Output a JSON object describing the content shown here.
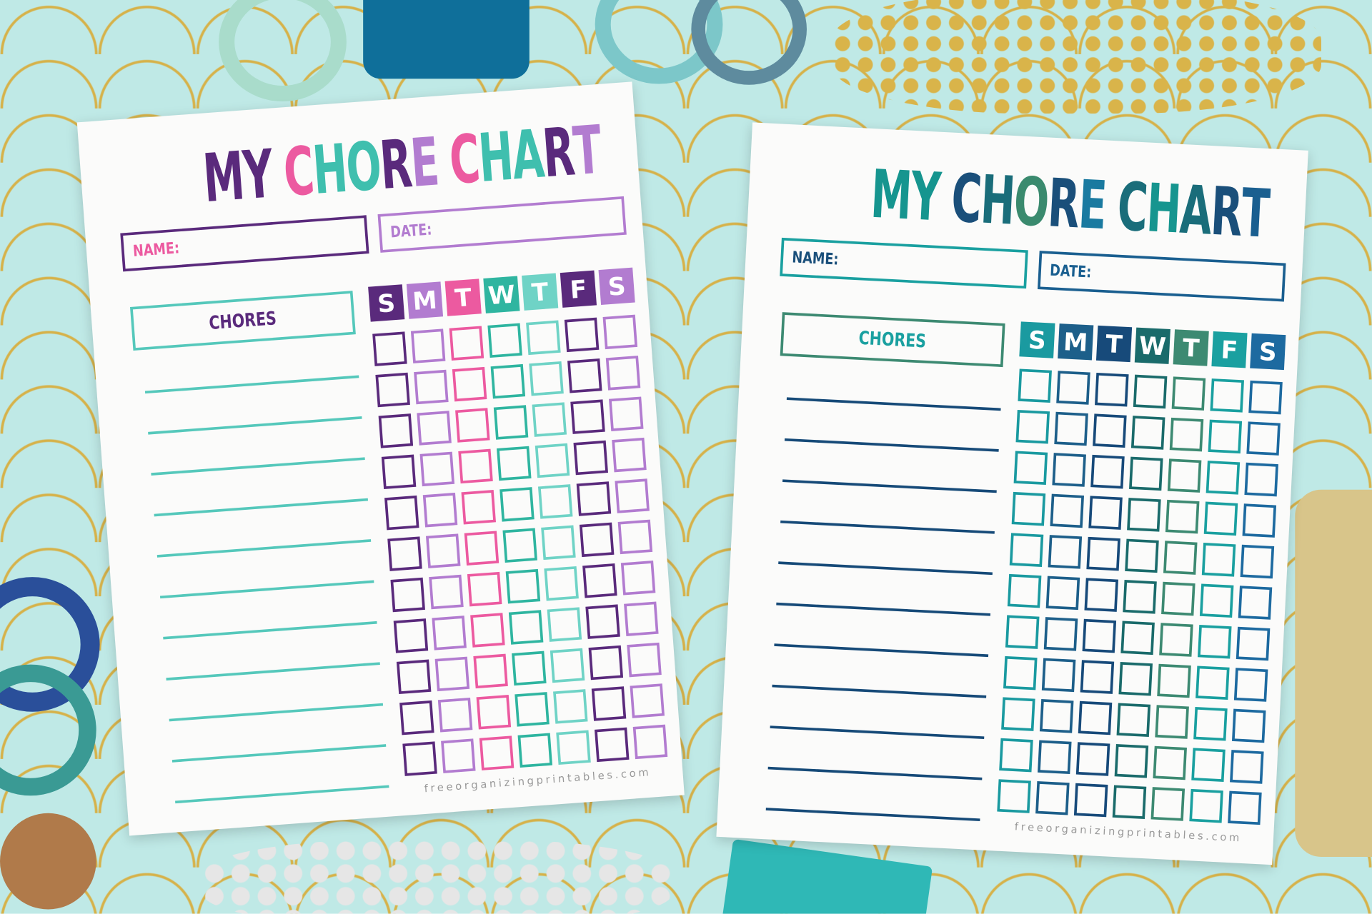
{
  "charts": [
    {
      "title_letters": [
        [
          "M",
          "#5a2a7c"
        ],
        [
          "Y",
          "#5a2a7c"
        ],
        [
          " ",
          ""
        ],
        [
          "C",
          "#ec5aa0"
        ],
        [
          "H",
          "#3fbfae"
        ],
        [
          "O",
          "#3fbfae"
        ],
        [
          "R",
          "#5a2a7c"
        ],
        [
          "E",
          "#b27cd0"
        ],
        [
          " ",
          ""
        ],
        [
          "C",
          "#ec5aa0"
        ],
        [
          "H",
          "#3fbfae"
        ],
        [
          "A",
          "#3fbfae"
        ],
        [
          "R",
          "#5a2a7c"
        ],
        [
          "T",
          "#b27cd0"
        ]
      ],
      "name_label": "NAME:",
      "name_color": "#5a2a7c",
      "name_text_color": "#ec5aa0",
      "date_label": "DATE:",
      "date_color": "#b27cd0",
      "chores_label": "CHORES",
      "chores_border": "#55c8bb",
      "chores_text": "#5a2a7c",
      "line_color": "#55c8bb",
      "days": [
        "S",
        "M",
        "T",
        "W",
        "T",
        "F",
        "S"
      ],
      "day_colors": [
        "#5a2a7c",
        "#b27cd0",
        "#ec5aa0",
        "#2fb5a0",
        "#6fd3c6",
        "#5a2a7c",
        "#b27cd0"
      ],
      "website": "freeorganizingprintables.com"
    },
    {
      "title_letters": [
        [
          "M",
          "#16958f"
        ],
        [
          "Y",
          "#16958f"
        ],
        [
          " ",
          ""
        ],
        [
          "C",
          "#1a4f7a"
        ],
        [
          "H",
          "#1a6d7a"
        ],
        [
          "O",
          "#3a8a6e"
        ],
        [
          "R",
          "#1a4f7a"
        ],
        [
          "E",
          "#1a7aa0"
        ],
        [
          " ",
          ""
        ],
        [
          "C",
          "#1a6d7a"
        ],
        [
          "H",
          "#16958f"
        ],
        [
          "A",
          "#1a6d7a"
        ],
        [
          "R",
          "#1a4f7a"
        ],
        [
          "T",
          "#1a5f90"
        ]
      ],
      "name_label": "NAME:",
      "name_color": "#1aa0a0",
      "name_text_color": "#1a4f7a",
      "date_label": "DATE:",
      "date_color": "#1a5f90",
      "chores_label": "CHORES",
      "chores_border": "#3d8a72",
      "chores_text": "#1aa0a0",
      "line_color": "#164a78",
      "days": [
        "S",
        "M",
        "T",
        "W",
        "T",
        "F",
        "S"
      ],
      "day_colors": [
        "#1a9aa0",
        "#1d5f8a",
        "#174a7a",
        "#1a6b6b",
        "#3d8a72",
        "#1aa0a0",
        "#1d6aa0"
      ],
      "website": "freeorganizingprintables.com"
    }
  ]
}
